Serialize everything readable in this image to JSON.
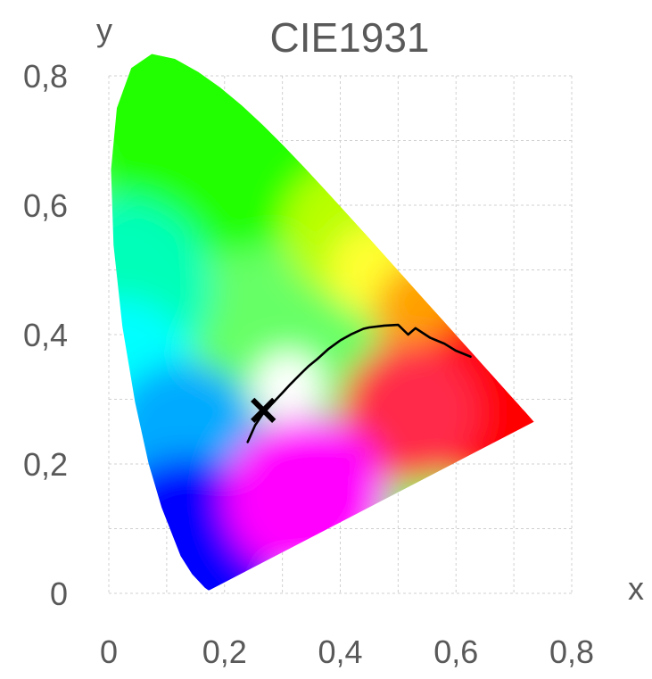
{
  "chart_data": {
    "type": "scatter",
    "title": "CIE1931",
    "xlabel": "x",
    "ylabel": "y",
    "xlim": [
      0,
      0.8
    ],
    "ylim": [
      0,
      0.8
    ],
    "grid": true,
    "x_ticks": [
      0,
      0.1,
      0.2,
      0.3,
      0.4,
      0.5,
      0.6,
      0.7,
      0.8
    ],
    "y_ticks": [
      0,
      0.1,
      0.2,
      0.3,
      0.4,
      0.5,
      0.6,
      0.7,
      0.8
    ],
    "x_tick_labels": [
      {
        "value": 0,
        "label": "0"
      },
      {
        "value": 0.2,
        "label": "0,2"
      },
      {
        "value": 0.4,
        "label": "0,4"
      },
      {
        "value": 0.6,
        "label": "0,6"
      },
      {
        "value": 0.8,
        "label": "0,8"
      }
    ],
    "y_tick_labels": [
      {
        "value": 0,
        "label": "0"
      },
      {
        "value": 0.2,
        "label": "0,2"
      },
      {
        "value": 0.4,
        "label": "0,4"
      },
      {
        "value": 0.6,
        "label": "0,6"
      },
      {
        "value": 0.8,
        "label": "0,8"
      }
    ],
    "gamut_boundary": {
      "x": [
        0.174,
        0.172,
        0.166,
        0.144,
        0.1241,
        0.0913,
        0.0687,
        0.0454,
        0.0235,
        0.0082,
        0.0039,
        0.0139,
        0.0389,
        0.0743,
        0.1142,
        0.1547,
        0.1929,
        0.2296,
        0.2658,
        0.3016,
        0.3373,
        0.3731,
        0.4087,
        0.4441,
        0.4788,
        0.5125,
        0.5448,
        0.5752,
        0.6029,
        0.627,
        0.6482,
        0.6658,
        0.6801,
        0.6915,
        0.7006,
        0.7079,
        0.714,
        0.719,
        0.7347
      ],
      "y": [
        0.005,
        0.0048,
        0.0086,
        0.0297,
        0.0578,
        0.1327,
        0.2007,
        0.295,
        0.4127,
        0.5384,
        0.6548,
        0.7502,
        0.812,
        0.8338,
        0.8262,
        0.8059,
        0.7816,
        0.7543,
        0.7243,
        0.6923,
        0.6589,
        0.6245,
        0.5896,
        0.5547,
        0.5202,
        0.4866,
        0.4544,
        0.4242,
        0.3965,
        0.3725,
        0.3514,
        0.334,
        0.3197,
        0.3083,
        0.2993,
        0.292,
        0.2859,
        0.2809,
        0.2653
      ]
    },
    "series": [
      {
        "type": "line",
        "x": [
          0.24,
          0.253,
          0.265,
          0.28,
          0.3,
          0.3135,
          0.33,
          0.345,
          0.36,
          0.38,
          0.4,
          0.42,
          0.44,
          0.45,
          0.4764,
          0.5,
          0.5173,
          0.53,
          0.5555,
          0.58,
          0.6,
          0.625
        ],
        "y": [
          0.234,
          0.26,
          0.276,
          0.291,
          0.31,
          0.323,
          0.338,
          0.351,
          0.362,
          0.378,
          0.391,
          0.401,
          0.409,
          0.411,
          0.414,
          0.415,
          0.4,
          0.41,
          0.395,
          0.386,
          0.375,
          0.366
        ],
        "color": "#000000"
      },
      {
        "type": "scatter",
        "marker": "x",
        "x": [
          0.267
        ],
        "y": [
          0.283
        ],
        "color": "#000000"
      }
    ],
    "colors": {
      "grid": "#d0d0d0",
      "text": "#595959",
      "curve": "#000000"
    }
  }
}
